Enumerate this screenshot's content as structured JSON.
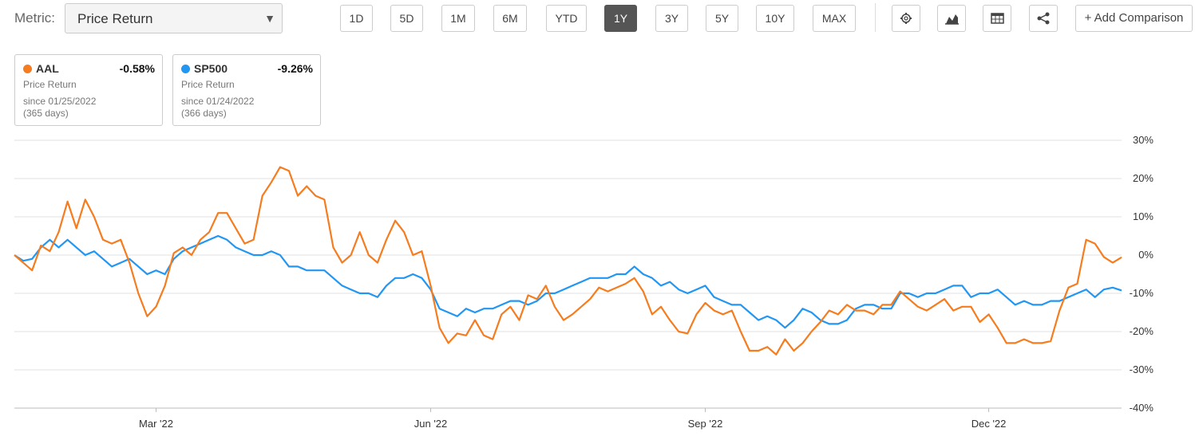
{
  "toolbar": {
    "metric_label": "Metric:",
    "metric_value": "Price Return",
    "ranges": [
      "1D",
      "5D",
      "1M",
      "6M",
      "YTD",
      "1Y",
      "3Y",
      "5Y",
      "10Y",
      "MAX"
    ],
    "active_range_index": 5,
    "add_comparison": "+ Add Comparison"
  },
  "cards": [
    {
      "symbol": "AAL",
      "change": "-0.58%",
      "metric": "Price Return",
      "since": "since 01/25/2022",
      "days": "(365 days)"
    },
    {
      "symbol": "SP500",
      "change": "-9.26%",
      "metric": "Price Return",
      "since": "since 01/24/2022",
      "days": "(366 days)"
    }
  ],
  "chart_data": {
    "type": "line",
    "categories": [
      null,
      null,
      null,
      null,
      null,
      null,
      null,
      null,
      null,
      null,
      null,
      null,
      null,
      null,
      null,
      null,
      "Mar '22",
      null,
      null,
      null,
      null,
      null,
      null,
      null,
      null,
      null,
      null,
      null,
      null,
      null,
      null,
      null,
      null,
      null,
      null,
      null,
      null,
      null,
      null,
      null,
      null,
      null,
      null,
      null,
      null,
      null,
      null,
      "Jun '22",
      null,
      null,
      null,
      null,
      null,
      null,
      null,
      null,
      null,
      null,
      null,
      null,
      null,
      null,
      null,
      null,
      null,
      null,
      null,
      null,
      null,
      null,
      null,
      null,
      null,
      null,
      null,
      null,
      null,
      null,
      "Sep '22",
      null,
      null,
      null,
      null,
      null,
      null,
      null,
      null,
      null,
      null,
      null,
      null,
      null,
      null,
      null,
      null,
      null,
      null,
      null,
      null,
      null,
      null,
      null,
      null,
      null,
      null,
      null,
      null,
      null,
      null,
      null,
      "Dec '22",
      null,
      null,
      null,
      null,
      null,
      null,
      null,
      null,
      null,
      null,
      null,
      null,
      null,
      null,
      null
    ],
    "series": [
      {
        "name": "AAL",
        "color": "#f57c1f",
        "values": [
          0,
          -2,
          -4,
          2.5,
          1,
          6,
          14,
          7,
          14.5,
          10,
          4,
          3,
          4,
          -2,
          -10,
          -16,
          -13.5,
          -8,
          0.5,
          2,
          0,
          4,
          6,
          11,
          11,
          7,
          3,
          4,
          15.5,
          19,
          23,
          22,
          15.5,
          18,
          15.5,
          14.5,
          2,
          -2,
          0,
          6,
          0,
          -2,
          4,
          9,
          6,
          0,
          1,
          -8,
          -19,
          -23,
          -20.5,
          -21,
          -17,
          -21,
          -22,
          -15.5,
          -13.5,
          -17,
          -10.5,
          -11.5,
          -8,
          -13.5,
          -17,
          -15.5,
          -13.5,
          -11.5,
          -8.5,
          -9.5,
          -8.5,
          -7.5,
          -6,
          -9.5,
          -15.5,
          -13.5,
          -17,
          -20,
          -20.5,
          -15.5,
          -12.5,
          -14.5,
          -15.5,
          -14.5,
          -20,
          -25,
          -25,
          -24,
          -26,
          -22,
          -25,
          -23,
          -20,
          -17.5,
          -14.5,
          -15.5,
          -13,
          -14.5,
          -14.5,
          -15.5,
          -13,
          -13,
          -9.5,
          -11.5,
          -13.5,
          -14.5,
          -13,
          -11.5,
          -14.5,
          -13.5,
          -13.5,
          -17.5,
          -15.5,
          -19,
          -23,
          -23,
          -22,
          -23,
          -23,
          -22.5,
          -14.5,
          -8.5,
          -7.5,
          4,
          3,
          -0.5,
          -2,
          -0.58
        ]
      },
      {
        "name": "SP500",
        "color": "#2196f3",
        "values": [
          0,
          -1.5,
          -1,
          2,
          4,
          2,
          4,
          2,
          0,
          1,
          -1,
          -3,
          -2,
          -1,
          -3,
          -5,
          -4,
          -5,
          -1,
          1,
          2,
          3,
          4,
          5,
          4,
          2,
          1,
          0,
          0,
          1,
          0,
          -3,
          -3,
          -4,
          -4,
          -4,
          -6,
          -8,
          -9,
          -10,
          -10,
          -11,
          -8,
          -6,
          -6,
          -5,
          -6,
          -9,
          -14,
          -15,
          -16,
          -14,
          -15,
          -14,
          -14,
          -13,
          -12,
          -12,
          -13,
          -12,
          -10,
          -10,
          -9,
          -8,
          -7,
          -6,
          -6,
          -6,
          -5,
          -5,
          -3,
          -5,
          -6,
          -8,
          -7,
          -9,
          -10,
          -9,
          -8,
          -11,
          -12,
          -13,
          -13,
          -15,
          -17,
          -16,
          -17,
          -19,
          -17,
          -14,
          -15,
          -17,
          -18,
          -18,
          -17,
          -14,
          -13,
          -13,
          -14,
          -14,
          -10,
          -10,
          -11,
          -10,
          -10,
          -9,
          -8,
          -8,
          -11,
          -10,
          -10,
          -9,
          -11,
          -13,
          -12,
          -13,
          -13,
          -12,
          -12,
          -11,
          -10,
          -9,
          -11,
          -9,
          -8.5,
          -9.26
        ]
      }
    ],
    "ylim": [
      -40,
      30
    ],
    "yticks": [
      {
        "value": -40,
        "label": "-40%"
      },
      {
        "value": -30,
        "label": "-30%"
      },
      {
        "value": -20,
        "label": "-20%"
      },
      {
        "value": -10,
        "label": "-10%"
      },
      {
        "value": 0,
        "label": "0%"
      },
      {
        "value": 10,
        "label": "10%"
      },
      {
        "value": 20,
        "label": "20%"
      },
      {
        "value": 30,
        "label": "30%"
      }
    ],
    "grid": true
  }
}
